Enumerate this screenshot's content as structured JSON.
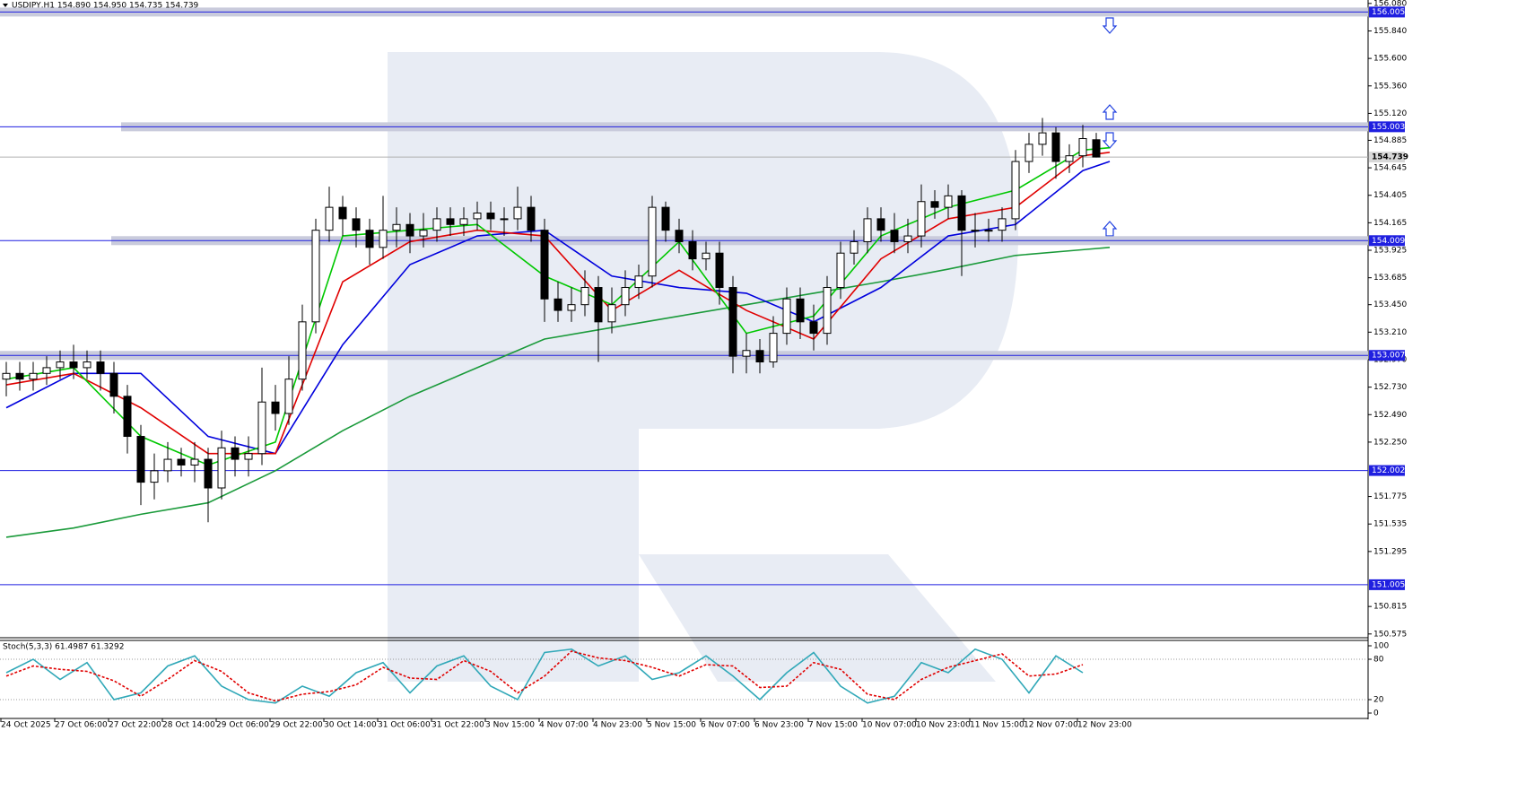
{
  "chart_data": {
    "type": "candlestick",
    "title": "USDJPY,H1  154.890 154.950 154.735 154.739",
    "categories": [
      "24 Oct 2025",
      null,
      null,
      null,
      "27 Oct 06:00",
      null,
      null,
      null,
      "27 Oct 22:00",
      null,
      null,
      null,
      "28 Oct 14:00",
      null,
      null,
      null,
      "29 Oct 06:00",
      null,
      null,
      null,
      "29 Oct 22:00",
      null,
      null,
      null,
      "30 Oct 14:00",
      null,
      null,
      null,
      "31 Oct 06:00",
      null,
      null,
      null,
      "31 Oct 22:00",
      null,
      null,
      null,
      "3 Nov 15:00",
      null,
      null,
      null,
      "4 Nov 07:00",
      null,
      null,
      null,
      "4 Nov 23:00",
      null,
      null,
      null,
      "5 Nov 15:00",
      null,
      null,
      null,
      "6 Nov 07:00",
      null,
      null,
      null,
      "6 Nov 23:00",
      null,
      null,
      null,
      "7 Nov 15:00",
      null,
      null,
      null,
      "10 Nov 07:00",
      null,
      null,
      null,
      "10 Nov 23:00",
      null,
      null,
      null,
      "11 Nov 15:00",
      null,
      null,
      null,
      "12 Nov 07:00",
      null,
      null,
      null,
      "12 Nov 23:00",
      null
    ],
    "open": [
      152.8,
      152.85,
      152.8,
      152.85,
      152.9,
      152.95,
      152.9,
      152.95,
      152.85,
      152.65,
      152.3,
      151.9,
      152.0,
      152.1,
      152.05,
      152.1,
      151.85,
      152.2,
      152.1,
      152.15,
      152.6,
      152.5,
      152.8,
      153.3,
      154.1,
      154.3,
      154.2,
      154.1,
      153.95,
      154.1,
      154.15,
      154.05,
      154.1,
      154.2,
      154.15,
      154.2,
      154.25,
      154.2,
      154.2,
      154.3,
      154.1,
      153.5,
      153.4,
      153.45,
      153.6,
      153.3,
      153.45,
      153.6,
      153.7,
      154.3,
      154.1,
      154.0,
      153.85,
      153.9,
      153.6,
      153.0,
      153.05,
      152.95,
      153.2,
      153.5,
      153.3,
      153.2,
      153.6,
      153.9,
      154.0,
      154.2,
      154.1,
      154.0,
      154.05,
      154.35,
      154.3,
      154.4,
      154.1,
      154.1,
      154.1,
      154.2,
      154.7,
      154.85,
      154.95,
      154.7,
      154.75,
      154.89
    ],
    "high": [
      152.95,
      152.95,
      152.95,
      153.0,
      153.05,
      153.1,
      153.05,
      153.05,
      152.95,
      152.75,
      152.4,
      152.15,
      152.25,
      152.2,
      152.25,
      152.2,
      152.35,
      152.3,
      152.3,
      152.9,
      152.75,
      153.0,
      153.45,
      154.2,
      154.48,
      154.4,
      154.3,
      154.2,
      154.4,
      154.3,
      154.25,
      154.25,
      154.3,
      154.3,
      154.3,
      154.35,
      154.35,
      154.3,
      154.48,
      154.4,
      154.2,
      153.65,
      153.6,
      153.75,
      153.7,
      153.6,
      153.75,
      153.8,
      154.4,
      154.35,
      154.2,
      154.1,
      154.0,
      154.0,
      153.7,
      153.2,
      153.15,
      153.35,
      153.6,
      153.6,
      153.45,
      153.7,
      154.0,
      154.1,
      154.3,
      154.3,
      154.25,
      154.2,
      154.5,
      154.45,
      154.5,
      154.45,
      154.25,
      154.2,
      154.3,
      154.8,
      154.95,
      155.08,
      155.0,
      154.85,
      155.02,
      154.95
    ],
    "low": [
      152.65,
      152.7,
      152.7,
      152.75,
      152.8,
      152.8,
      152.8,
      152.7,
      152.5,
      152.15,
      151.7,
      151.75,
      151.9,
      151.95,
      151.9,
      151.55,
      151.75,
      151.95,
      151.95,
      152.05,
      152.35,
      152.4,
      152.7,
      153.2,
      154.0,
      154.05,
      153.95,
      153.8,
      153.85,
      153.95,
      153.9,
      153.95,
      154.0,
      154.05,
      154.05,
      154.1,
      154.1,
      154.05,
      154.1,
      154.0,
      153.3,
      153.3,
      153.3,
      153.35,
      152.95,
      153.2,
      153.35,
      153.5,
      153.6,
      154.0,
      153.9,
      153.75,
      153.75,
      153.45,
      152.85,
      152.85,
      152.85,
      152.9,
      153.1,
      153.15,
      153.05,
      153.1,
      153.5,
      153.8,
      153.9,
      154.0,
      153.9,
      153.9,
      153.95,
      154.2,
      154.2,
      153.7,
      153.95,
      154.0,
      154.0,
      154.1,
      154.6,
      154.75,
      154.55,
      154.6,
      154.65,
      154.735
    ],
    "close": [
      152.85,
      152.8,
      152.85,
      152.9,
      152.95,
      152.9,
      152.95,
      152.85,
      152.65,
      152.3,
      151.9,
      152.0,
      152.1,
      152.05,
      152.1,
      151.85,
      152.2,
      152.1,
      152.15,
      152.6,
      152.5,
      152.8,
      153.3,
      154.1,
      154.3,
      154.2,
      154.1,
      153.95,
      154.1,
      154.15,
      154.05,
      154.1,
      154.2,
      154.15,
      154.2,
      154.25,
      154.2,
      154.2,
      154.3,
      154.1,
      153.5,
      153.4,
      153.45,
      153.6,
      153.3,
      153.45,
      153.6,
      153.7,
      154.3,
      154.1,
      154.0,
      153.85,
      153.9,
      153.6,
      153.0,
      153.05,
      152.95,
      153.2,
      153.5,
      153.3,
      153.2,
      153.6,
      153.9,
      154.0,
      154.2,
      154.1,
      154.0,
      154.05,
      154.35,
      154.3,
      154.4,
      154.1,
      154.1,
      154.1,
      154.2,
      154.7,
      154.85,
      154.95,
      154.7,
      154.75,
      154.9,
      154.739
    ],
    "series": [
      {
        "color": "#1a9a3a",
        "x": [
          0,
          5,
          10,
          15,
          20,
          25,
          30,
          35,
          40,
          45,
          50,
          55,
          60,
          65,
          70,
          75,
          80,
          82
        ],
        "values": [
          151.42,
          151.5,
          151.62,
          151.72,
          152.0,
          152.35,
          152.65,
          152.9,
          153.15,
          153.25,
          153.35,
          153.45,
          153.55,
          153.65,
          153.76,
          153.88,
          153.93,
          153.95
        ]
      },
      {
        "color": "#0000dd",
        "x": [
          0,
          5,
          10,
          15,
          20,
          25,
          30,
          35,
          40,
          45,
          50,
          55,
          60,
          65,
          70,
          75,
          80,
          82
        ],
        "values": [
          152.55,
          152.85,
          152.85,
          152.3,
          152.15,
          153.1,
          153.8,
          154.05,
          154.1,
          153.7,
          153.6,
          153.55,
          153.3,
          153.6,
          154.05,
          154.15,
          154.62,
          154.7
        ]
      },
      {
        "color": "#e00000",
        "x": [
          0,
          5,
          10,
          15,
          20,
          25,
          30,
          35,
          40,
          45,
          50,
          55,
          60,
          65,
          70,
          75,
          80,
          82
        ],
        "values": [
          152.75,
          152.85,
          152.55,
          152.15,
          152.15,
          153.65,
          154.0,
          154.1,
          154.05,
          153.4,
          153.75,
          153.4,
          153.15,
          153.85,
          154.2,
          154.3,
          154.75,
          154.78
        ]
      },
      {
        "color": "#00c800",
        "x": [
          0,
          5,
          10,
          15,
          20,
          25,
          30,
          35,
          40,
          45,
          50,
          55,
          60,
          65,
          70,
          75,
          80,
          82
        ],
        "values": [
          152.8,
          152.9,
          152.3,
          152.05,
          152.25,
          154.05,
          154.1,
          154.15,
          153.7,
          153.45,
          154.0,
          153.2,
          153.35,
          154.05,
          154.3,
          154.45,
          154.8,
          154.82
        ]
      }
    ],
    "ylim": [
      150.55,
      156.11
    ],
    "yticks": [
      {
        "value": 156.08,
        "label": "156.080"
      },
      {
        "value": 155.84,
        "label": "155.840"
      },
      {
        "value": 155.6,
        "label": "155.600"
      },
      {
        "value": 155.36,
        "label": "155.360"
      },
      {
        "value": 155.12,
        "label": "155.120"
      },
      154.885,
      154.645,
      154.405,
      154.165,
      153.925,
      153.685,
      {
        "value": 153.45,
        "label": "153.450"
      },
      {
        "value": 153.21,
        "label": "153.210"
      },
      {
        "value": 152.97,
        "label": "152.970"
      },
      {
        "value": 152.73,
        "label": "152.730"
      },
      {
        "value": 152.49,
        "label": "152.490"
      },
      {
        "value": 152.25,
        "label": "152.250"
      },
      151.775,
      151.535,
      151.295,
      150.815,
      150.575
    ],
    "levels": [
      156.005,
      155.003,
      154.009,
      153.007,
      152.002,
      151.005
    ],
    "bid": 154.739,
    "stochastic": {
      "title": "Stoch(5,3,3) 61.4987 61.3292",
      "x": [
        0,
        2,
        4,
        6,
        8,
        10,
        12,
        14,
        16,
        18,
        20,
        22,
        24,
        26,
        28,
        30,
        32,
        34,
        36,
        38,
        40,
        42,
        44,
        46,
        48,
        50,
        52,
        54,
        56,
        58,
        60,
        62,
        64,
        66,
        68,
        70,
        72,
        74,
        76,
        78,
        80
      ],
      "main": {
        "color": "#30a8b8",
        "values": [
          60,
          80,
          50,
          75,
          20,
          30,
          70,
          85,
          40,
          20,
          15,
          40,
          25,
          60,
          75,
          30,
          70,
          85,
          40,
          20,
          90,
          95,
          70,
          85,
          50,
          60,
          85,
          55,
          20,
          60,
          90,
          40,
          15,
          25,
          75,
          60,
          95,
          80,
          30,
          85,
          60
        ]
      },
      "signal": {
        "color": "#e00000",
        "values": [
          55,
          70,
          65,
          62,
          48,
          25,
          50,
          78,
          62,
          30,
          18,
          28,
          32,
          42,
          68,
          52,
          50,
          78,
          62,
          30,
          55,
          92,
          82,
          78,
          68,
          55,
          72,
          70,
          38,
          40,
          75,
          65,
          28,
          20,
          50,
          68,
          78,
          88,
          55,
          58,
          72
        ]
      },
      "ylim": [
        0,
        100
      ],
      "yticks": [
        100,
        80,
        20,
        0
      ]
    }
  }
}
